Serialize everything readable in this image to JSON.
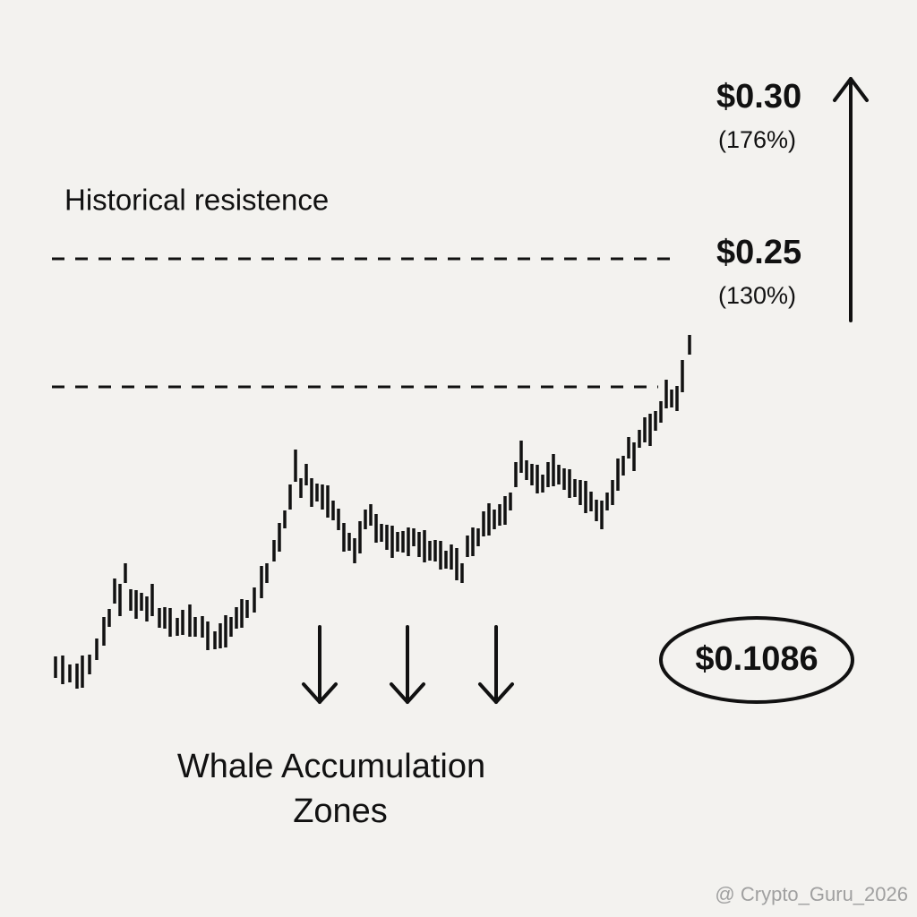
{
  "annotations": {
    "target_high": {
      "price": "$0.30",
      "percent": "(176%)"
    },
    "resistance_label": "Historical resistence",
    "target_low": {
      "price": "$0.25",
      "percent": "(130%)"
    },
    "current_price": "$0.1086",
    "zones_label": [
      "Whale Accumulation",
      "Zones"
    ]
  },
  "watermark": "@ Crypto_Guru_2026"
}
